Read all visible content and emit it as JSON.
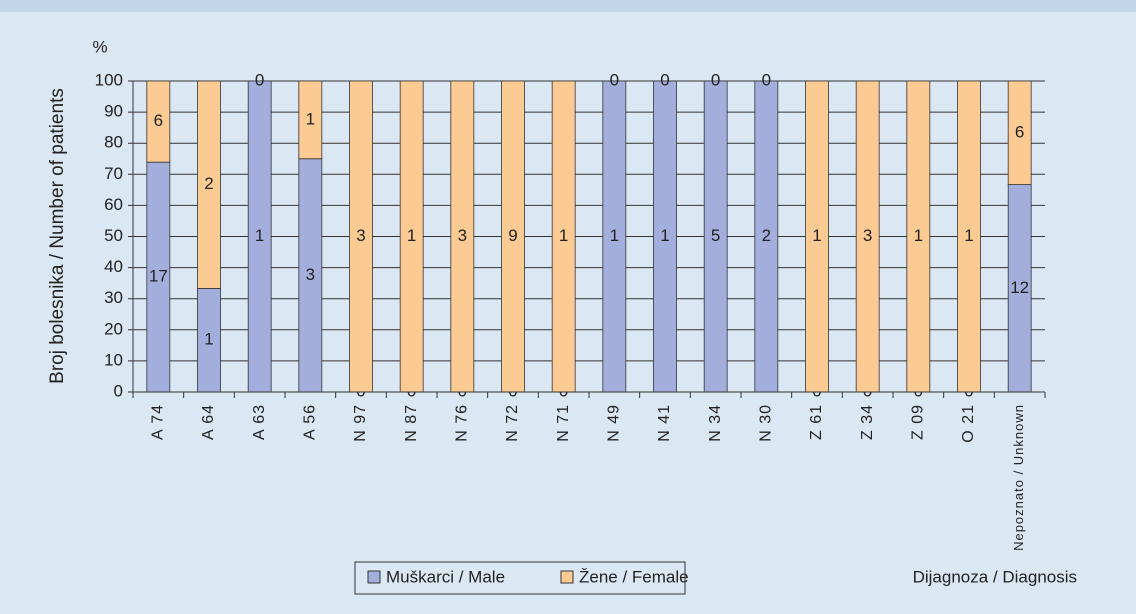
{
  "chart_data": {
    "type": "stacked_bar",
    "y_unit": "%",
    "ylabel": "Broj bolesnika / Number of patients",
    "xlabel": "Dijagnoza / Diagnosis",
    "categories": [
      "A 74",
      "A 64",
      "A 63",
      "A 56",
      "N 97",
      "N 87",
      "N 76",
      "N 72",
      "N 71",
      "N 49",
      "N 41",
      "N 34",
      "N 30",
      "Z 61",
      "Z 34",
      "Z 09",
      "O 21",
      "Nepoznato / Unknown"
    ],
    "series": [
      {
        "name": "Muškarci / Male",
        "color": "#a4aedd",
        "values": [
          73.9,
          33.3,
          100,
          75,
          0,
          0,
          0,
          0,
          0,
          100,
          100,
          100,
          100,
          0,
          0,
          0,
          0,
          66.7
        ],
        "counts": [
          17,
          1,
          1,
          3,
          0,
          0,
          0,
          0,
          0,
          1,
          1,
          5,
          2,
          0,
          0,
          0,
          0,
          12
        ]
      },
      {
        "name": "Žene / Female",
        "color": "#fccb93",
        "values": [
          26.1,
          66.7,
          0,
          25,
          100,
          100,
          100,
          100,
          100,
          0,
          0,
          0,
          0,
          100,
          100,
          100,
          100,
          33.3
        ],
        "counts": [
          6,
          2,
          0,
          1,
          3,
          1,
          3,
          9,
          1,
          0,
          0,
          0,
          0,
          1,
          3,
          1,
          1,
          6
        ]
      }
    ],
    "ylim": [
      0,
      100
    ],
    "yticks": [
      0,
      10,
      20,
      30,
      40,
      50,
      60,
      70,
      80,
      90,
      100
    ],
    "grid": true,
    "legend": "bottom"
  }
}
